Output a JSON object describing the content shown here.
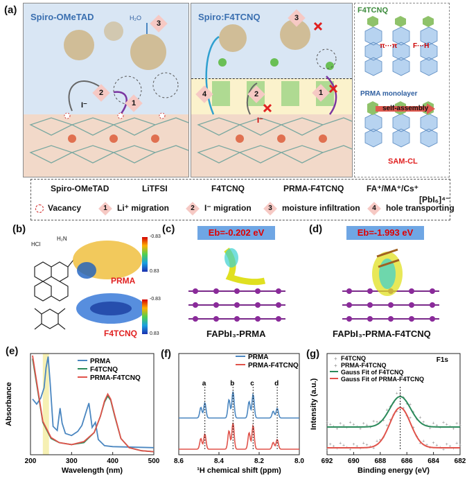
{
  "panels": {
    "a": "(a)",
    "b": "(b)",
    "c": "(c)",
    "d": "(d)",
    "e": "(e)",
    "f": "(f)",
    "g": "(g)"
  },
  "panel_a": {
    "left_title": "Spiro-OMeTAD",
    "mid_title": "Spiro:F4TCNQ",
    "right_title": "F4TCNQ",
    "pi_label": "π···π",
    "fh_label": "F···H",
    "monolayer": "PRMA monolayer",
    "self_assembly": "self-assembly",
    "samcl": "SAM-CL",
    "water": "H₂O",
    "iodide": "I⁻",
    "badges": [
      "1",
      "2",
      "3",
      "4"
    ]
  },
  "legend": {
    "row1": [
      "Spiro-OMeTAD",
      "LiTFSI",
      "F4TCNQ",
      "PRMA-F4TCNQ",
      "FA⁺/MA⁺/Cs⁺",
      "[PbI₆]⁴⁻"
    ],
    "row2": [
      "Vacancy",
      "Li⁺ migration",
      "I⁻ migration",
      "moisture infiltration",
      "hole transporting"
    ],
    "row2_nums": [
      "1",
      "2",
      "3",
      "4"
    ]
  },
  "panel_b": {
    "hcl": "HCl",
    "nh2": "H₂N",
    "prma": "PRMA",
    "f4tcnq": "F4TCNQ",
    "cmax": "-0.83",
    "cmin": "0.83"
  },
  "panel_c": {
    "eb": "Eb=-0.202 eV",
    "caption": "FAPbI₃-PRMA"
  },
  "panel_d": {
    "eb": "Eb=-1.993 eV",
    "caption": "FAPbI₃-PRMA-F4TCNQ"
  },
  "chart_data": [
    {
      "type": "line",
      "panel": "(e)",
      "xlabel": "Wavelength (nm)",
      "ylabel": "Absorbance",
      "xlim": [
        200,
        500
      ],
      "xticks": [
        200,
        300,
        400,
        500
      ],
      "series": [
        {
          "name": "PRMA",
          "color": "#4a86c0",
          "x": [
            205,
            215,
            225,
            233,
            238,
            243,
            248,
            255,
            265,
            272,
            277,
            285,
            300,
            315,
            325,
            335,
            342,
            350,
            358,
            365,
            380,
            400,
            500
          ],
          "y": [
            0.55,
            0.5,
            0.56,
            0.66,
            0.86,
            0.97,
            0.7,
            0.28,
            0.24,
            0.46,
            0.31,
            0.21,
            0.19,
            0.23,
            0.29,
            0.42,
            0.51,
            0.27,
            0.32,
            0.15,
            0.09,
            0.08,
            0.07
          ]
        },
        {
          "name": "F4TCNQ",
          "color": "#2a8a5a",
          "x": [
            205,
            215,
            230,
            250,
            270,
            300,
            330,
            355,
            370,
            380,
            388,
            395,
            405,
            420,
            440,
            470,
            500
          ],
          "y": [
            0.95,
            0.7,
            0.32,
            0.16,
            0.12,
            0.1,
            0.12,
            0.22,
            0.38,
            0.52,
            0.58,
            0.54,
            0.38,
            0.16,
            0.07,
            0.04,
            0.03
          ]
        },
        {
          "name": "PRMA-F4TCNQ",
          "color": "#e0524a",
          "x": [
            205,
            215,
            230,
            250,
            270,
            300,
            330,
            355,
            370,
            380,
            388,
            395,
            405,
            420,
            440,
            470,
            500
          ],
          "y": [
            0.98,
            0.72,
            0.33,
            0.17,
            0.12,
            0.1,
            0.13,
            0.22,
            0.38,
            0.53,
            0.6,
            0.55,
            0.39,
            0.16,
            0.07,
            0.04,
            0.03
          ]
        }
      ]
    },
    {
      "type": "line",
      "panel": "(f)",
      "xlabel": "¹H chemical shift (ppm)",
      "ylabel": "",
      "xlim": [
        8.6,
        8.0
      ],
      "xticks": [
        8.6,
        8.4,
        8.2,
        8.0
      ],
      "peak_labels": [
        "a",
        "b",
        "c",
        "d"
      ],
      "peak_positions": [
        8.47,
        8.33,
        8.23,
        8.11
      ],
      "series": [
        {
          "name": "PRMA",
          "color": "#4a86c0"
        },
        {
          "name": "PRMA-F4TCNQ",
          "color": "#e0524a"
        }
      ]
    },
    {
      "type": "scatter",
      "panel": "(g)",
      "xlabel": "Binding energy (eV)",
      "ylabel": "Intensity (a.u.)",
      "xlim": [
        692,
        682
      ],
      "xticks": [
        692,
        690,
        688,
        686,
        684,
        682
      ],
      "annotation": "F1s",
      "peak_center": 686.5,
      "series": [
        {
          "name": "F4TCNQ",
          "color": "#999999"
        },
        {
          "name": "PRMA-F4TCNQ",
          "color": "#999999"
        },
        {
          "name": "Gauss Fit of F4TCNQ",
          "color": "#2a8a5a"
        },
        {
          "name": "Gauss Fit of PRMA-F4TCNQ",
          "color": "#e0524a"
        }
      ]
    }
  ]
}
